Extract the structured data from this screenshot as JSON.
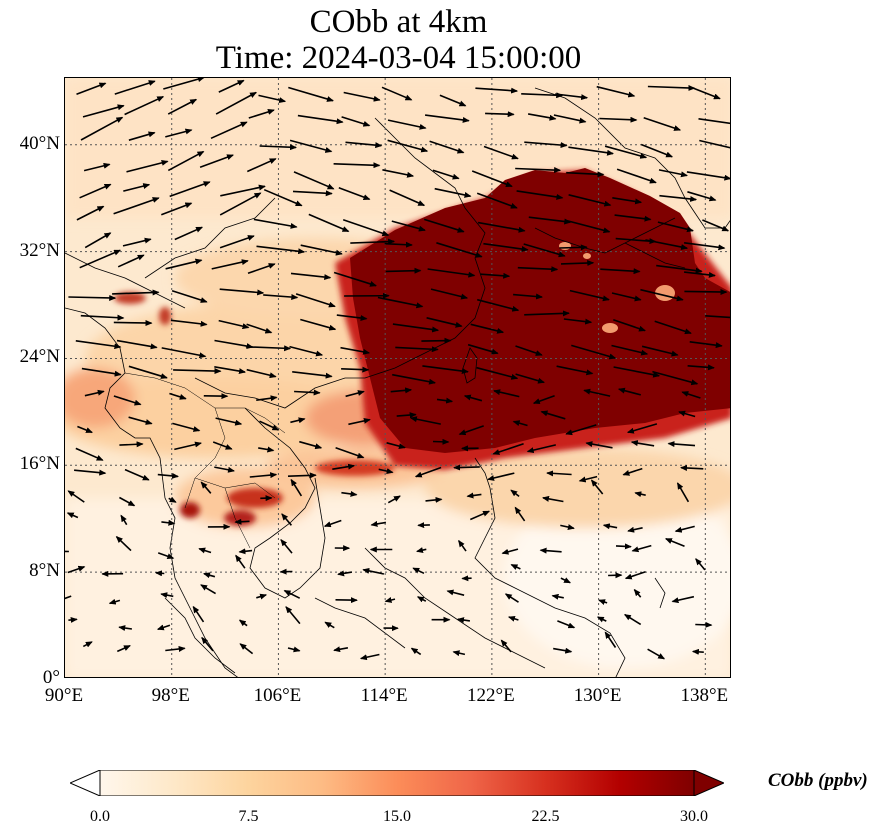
{
  "title": {
    "line1": "CObb at 4km",
    "line2": "Time: 2024-03-04 15:00:00"
  },
  "map": {
    "extent": {
      "lon_min": 90,
      "lon_max": 140,
      "lat_min": 0,
      "lat_max": 45
    },
    "gridlines": "dotted",
    "lat_ticks": [
      {
        "value": 0,
        "label": "0°"
      },
      {
        "value": 8,
        "label": "8°N"
      },
      {
        "value": 16,
        "label": "16°N"
      },
      {
        "value": 24,
        "label": "24°N"
      },
      {
        "value": 32,
        "label": "32°N"
      },
      {
        "value": 40,
        "label": "40°N"
      }
    ],
    "lon_ticks": [
      {
        "value": 90,
        "label": "90°E"
      },
      {
        "value": 98,
        "label": "98°E"
      },
      {
        "value": 106,
        "label": "106°E"
      },
      {
        "value": 114,
        "label": "114°E"
      },
      {
        "value": 122,
        "label": "122°E"
      },
      {
        "value": 130,
        "label": "130°E"
      },
      {
        "value": 138,
        "label": "138°E"
      }
    ],
    "field_summary": "CO from biomass burning concentrated over southern China, East China Sea and south of Japan; wind vectors westerly in the north, weak in the south"
  },
  "colorbar": {
    "label": "CObb (ppbv)",
    "min": 0.0,
    "max": 30.0,
    "extend": "both",
    "ticks": [
      "0.0",
      "7.5",
      "15.0",
      "22.5",
      "30.0"
    ],
    "colors": [
      "#fff7ec",
      "#fee8c8",
      "#fdd49e",
      "#fdbb84",
      "#fc8d59",
      "#ef6548",
      "#d7301f",
      "#b30000",
      "#7f0000"
    ]
  }
}
